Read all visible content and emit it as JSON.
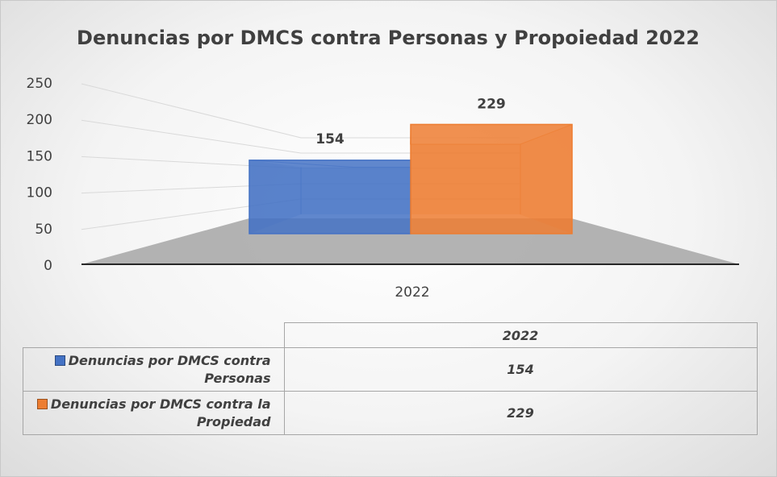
{
  "chart_data": {
    "type": "bar",
    "title": "Denuncias por DMCS contra Personas y Propoiedad 2022",
    "categories": [
      "2022"
    ],
    "series": [
      {
        "name": "Denuncias por DMCS contra Personas",
        "color": "#4472c4",
        "values": [
          154
        ]
      },
      {
        "name": "Denuncias por DMCS contra la Propiedad",
        "color": "#ed7d31",
        "values": [
          229
        ]
      }
    ],
    "ylim": [
      0,
      250
    ],
    "yticks": [
      0,
      50,
      100,
      150,
      200,
      250
    ],
    "grid": true
  }
}
